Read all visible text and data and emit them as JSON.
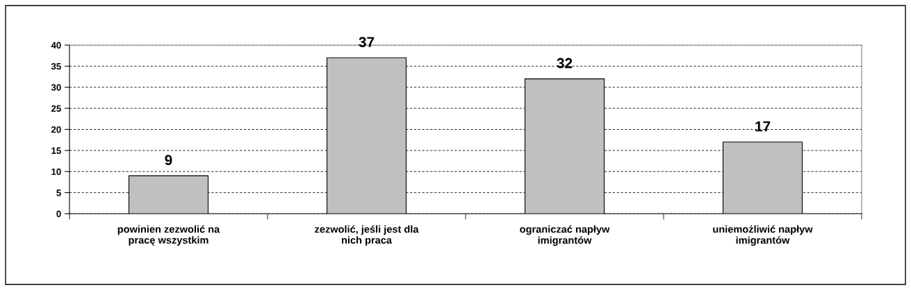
{
  "chart_data": {
    "type": "bar",
    "categories": [
      "powinien zezwolić na\npracę wszystkim",
      "zezwolić, jeśli jest dla\nnich praca",
      "ograniczać napływ\nimigrantów",
      "uniemożliwić napływ\nimigrantów"
    ],
    "values": [
      9,
      37,
      32,
      17
    ],
    "color": "#c0c0c0",
    "ylim": [
      0,
      40
    ],
    "yticks": [
      0,
      5,
      10,
      15,
      20,
      25,
      30,
      35,
      40
    ],
    "grid": "y",
    "data_labels": true
  }
}
